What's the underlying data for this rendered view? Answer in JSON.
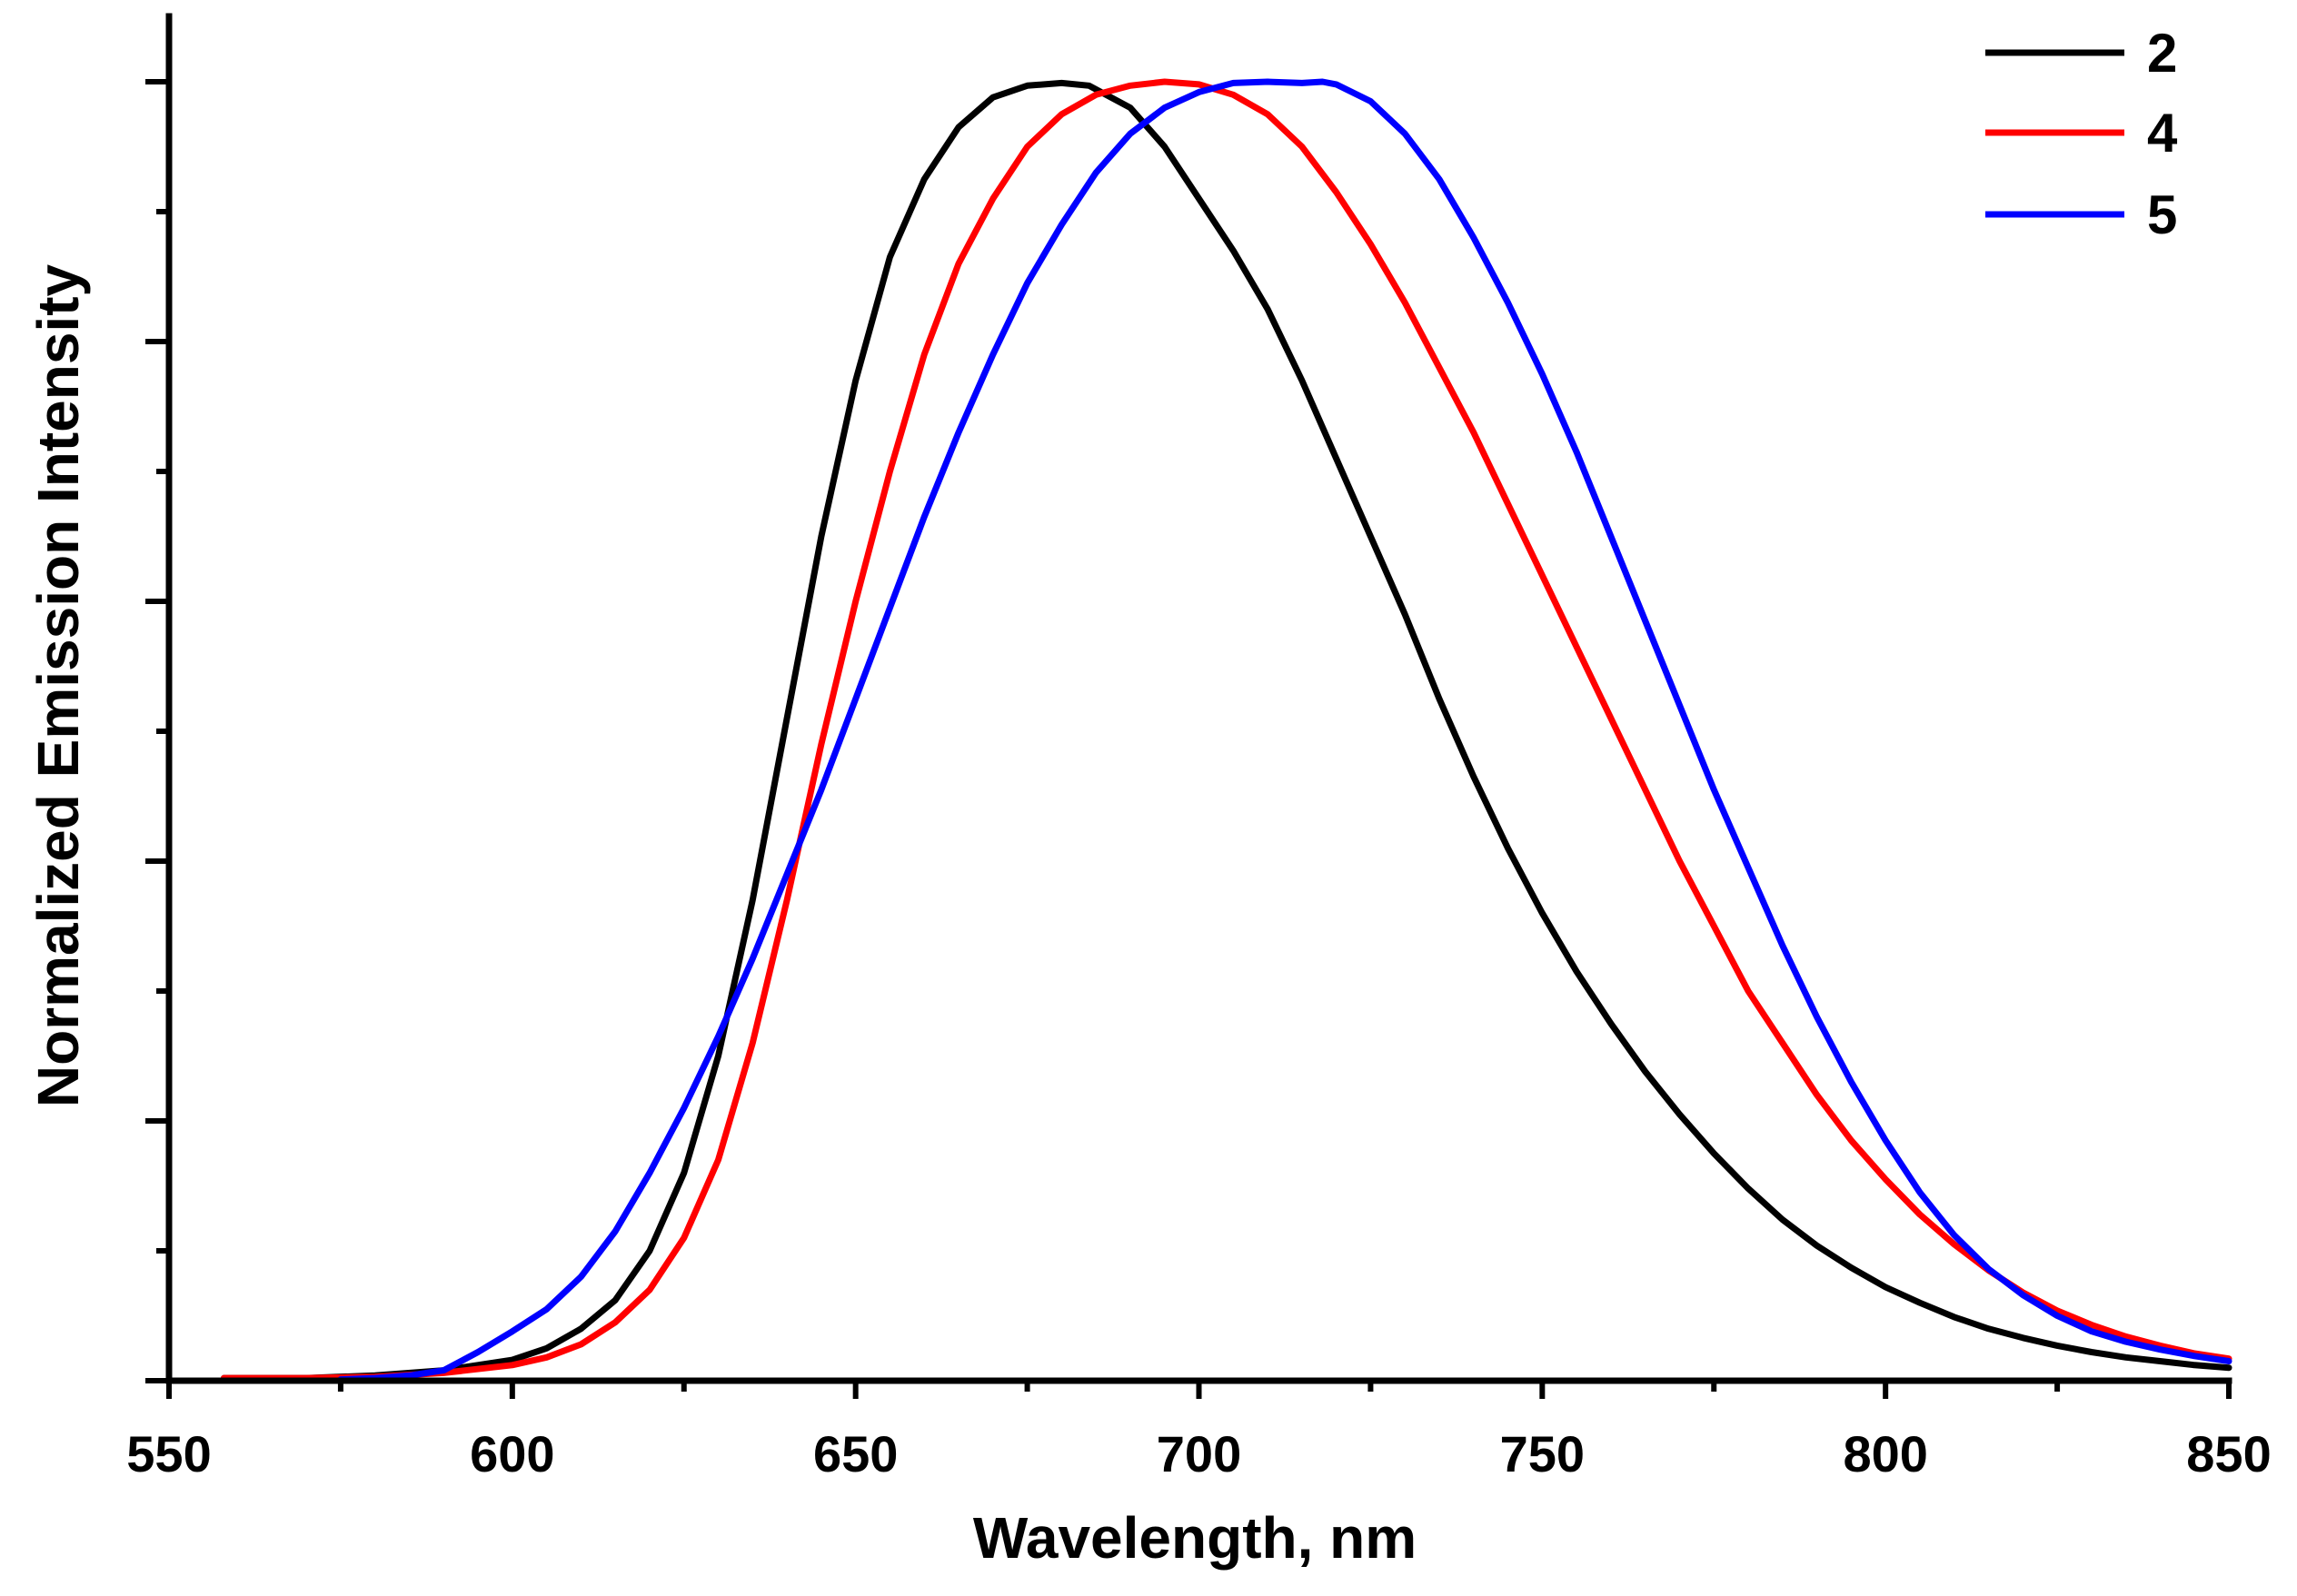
{
  "chart_data": {
    "type": "line",
    "title": "",
    "xlabel": "Wavelength, nm",
    "ylabel": "Normalized Emission Intensity",
    "xlim": [
      550,
      850
    ],
    "ylim": [
      0,
      1.0
    ],
    "x_major_ticks": [
      550,
      600,
      650,
      700,
      750,
      800,
      850
    ],
    "x_minor_ticks": [
      575,
      625,
      675,
      725,
      775,
      825
    ],
    "y_tick_values": [
      0,
      0.1,
      0.2,
      0.3,
      0.4,
      0.5,
      0.6,
      0.7,
      0.8,
      0.9,
      1.0
    ],
    "y_tick_labels_shown": false,
    "grid": false,
    "legend_position": "top-right",
    "series": [
      {
        "name": "2",
        "color": "#000000",
        "x": [
          558,
          570,
          580,
          590,
          600,
          605,
          610,
          615,
          620,
          625,
          630,
          635,
          640,
          645,
          650,
          655,
          660,
          665,
          670,
          675,
          680,
          684,
          690,
          695,
          700,
          705,
          710,
          715,
          720,
          725,
          730,
          735,
          740,
          745,
          750,
          755,
          760,
          765,
          770,
          775,
          780,
          785,
          790,
          795,
          800,
          805,
          810,
          815,
          820,
          825,
          830,
          835,
          840,
          845,
          850
        ],
        "values": [
          0.002,
          0.002,
          0.004,
          0.008,
          0.016,
          0.025,
          0.04,
          0.062,
          0.1,
          0.16,
          0.25,
          0.37,
          0.51,
          0.65,
          0.77,
          0.865,
          0.925,
          0.965,
          0.988,
          0.997,
          0.999,
          0.997,
          0.98,
          0.95,
          0.91,
          0.87,
          0.825,
          0.77,
          0.71,
          0.65,
          0.59,
          0.525,
          0.465,
          0.41,
          0.36,
          0.315,
          0.275,
          0.238,
          0.205,
          0.175,
          0.148,
          0.124,
          0.104,
          0.087,
          0.072,
          0.06,
          0.049,
          0.04,
          0.033,
          0.027,
          0.022,
          0.018,
          0.015,
          0.012,
          0.01
        ]
      },
      {
        "name": "4",
        "color": "#ff0000",
        "x": [
          558,
          570,
          580,
          590,
          600,
          605,
          610,
          615,
          620,
          625,
          630,
          635,
          640,
          645,
          650,
          655,
          660,
          665,
          670,
          675,
          680,
          685,
          690,
          695,
          700,
          705,
          710,
          715,
          720,
          725,
          730,
          735,
          740,
          745,
          750,
          755,
          760,
          765,
          770,
          775,
          780,
          785,
          790,
          795,
          800,
          805,
          810,
          815,
          820,
          825,
          830,
          835,
          840,
          845,
          850
        ],
        "values": [
          0.002,
          0.002,
          0.003,
          0.006,
          0.012,
          0.018,
          0.028,
          0.045,
          0.07,
          0.11,
          0.17,
          0.26,
          0.37,
          0.49,
          0.6,
          0.7,
          0.79,
          0.86,
          0.91,
          0.95,
          0.975,
          0.99,
          0.997,
          1.0,
          0.998,
          0.99,
          0.975,
          0.95,
          0.915,
          0.875,
          0.83,
          0.78,
          0.73,
          0.675,
          0.62,
          0.565,
          0.51,
          0.455,
          0.4,
          0.35,
          0.3,
          0.26,
          0.22,
          0.185,
          0.155,
          0.128,
          0.105,
          0.085,
          0.068,
          0.054,
          0.043,
          0.034,
          0.027,
          0.021,
          0.017
        ]
      },
      {
        "name": "5",
        "color": "#0000ff",
        "x": [
          575,
          580,
          585,
          590,
          595,
          600,
          605,
          610,
          615,
          620,
          625,
          630,
          635,
          640,
          645,
          650,
          655,
          660,
          665,
          670,
          675,
          680,
          685,
          690,
          695,
          700,
          705,
          710,
          715,
          718,
          720,
          725,
          730,
          735,
          740,
          745,
          750,
          755,
          760,
          765,
          770,
          775,
          780,
          785,
          790,
          795,
          800,
          805,
          810,
          815,
          820,
          825,
          830,
          835,
          840,
          845,
          850
        ],
        "values": [
          0.001,
          0.002,
          0.004,
          0.008,
          0.022,
          0.038,
          0.055,
          0.08,
          0.115,
          0.16,
          0.21,
          0.265,
          0.325,
          0.39,
          0.455,
          0.525,
          0.595,
          0.665,
          0.73,
          0.79,
          0.845,
          0.89,
          0.93,
          0.96,
          0.98,
          0.992,
          0.999,
          1.0,
          0.999,
          1.0,
          0.998,
          0.985,
          0.96,
          0.925,
          0.88,
          0.83,
          0.775,
          0.715,
          0.65,
          0.585,
          0.52,
          0.455,
          0.395,
          0.335,
          0.28,
          0.23,
          0.185,
          0.145,
          0.112,
          0.086,
          0.066,
          0.05,
          0.038,
          0.03,
          0.024,
          0.019,
          0.015
        ]
      }
    ]
  }
}
